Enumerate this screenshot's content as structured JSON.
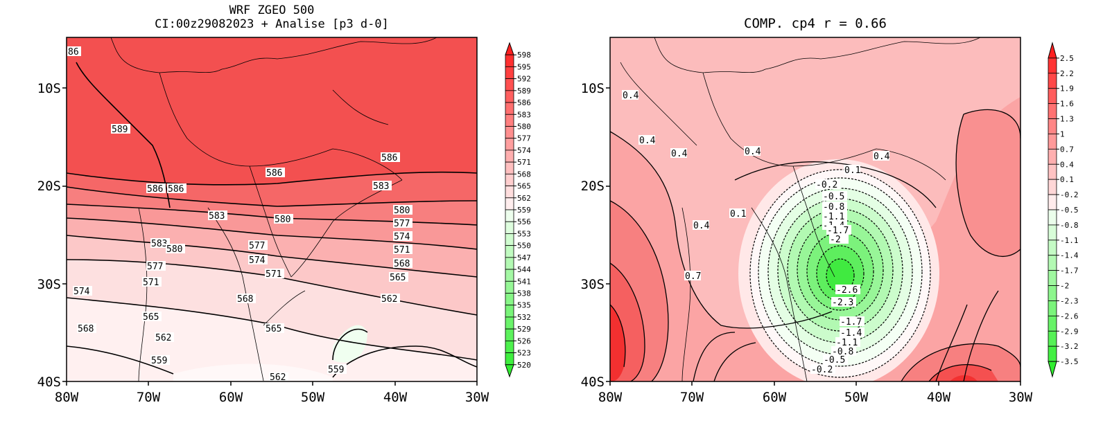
{
  "left_map": {
    "title_line1": "WRF ZGEO 500",
    "title_line2": "CI:00z29082023 + Analise  [p3 d-0]",
    "lat_labels": [
      "10S",
      "20S",
      "30S",
      "40S"
    ],
    "lon_labels": [
      "80W",
      "70W",
      "60W",
      "50W",
      "40W",
      "30W"
    ],
    "colorbar": [
      "598",
      "595",
      "592",
      "589",
      "586",
      "583",
      "580",
      "577",
      "574",
      "571",
      "568",
      "565",
      "562",
      "559",
      "556",
      "553",
      "550",
      "547",
      "544",
      "541",
      "538",
      "535",
      "532",
      "529",
      "526",
      "523",
      "520"
    ],
    "contour_labels": [
      "86",
      "589",
      "586",
      "586",
      "586",
      "586",
      "583",
      "583",
      "580",
      "580",
      "577",
      "577",
      "574",
      "574",
      "571",
      "571",
      "568",
      "568",
      "565",
      "565",
      "562",
      "562",
      "559",
      "559",
      "583",
      "580",
      "577",
      "571",
      "574",
      "565",
      "568",
      "562"
    ]
  },
  "right_map": {
    "title": "COMP. cp4  r =  0.66",
    "lat_labels": [
      "10S",
      "20S",
      "30S",
      "40S"
    ],
    "lon_labels": [
      "80W",
      "70W",
      "60W",
      "50W",
      "40W",
      "30W"
    ],
    "colorbar": [
      "2.5",
      "2.2",
      "1.9",
      "1.6",
      "1.3",
      "1",
      "0.7",
      "0.4",
      "0.1",
      "-0.2",
      "-0.5",
      "-0.8",
      "-1.1",
      "-1.4",
      "-1.7",
      "-2",
      "-2.3",
      "-2.6",
      "-2.9",
      "-3.2",
      "-3.5"
    ],
    "contour_labels": [
      "0.4",
      "0.4",
      "0.4",
      "0.4",
      "0.4",
      "0.1",
      "-0.2",
      "-0.5",
      "-0.8",
      "-1.1",
      "-1.4",
      "-1.7",
      "-2",
      "0.4",
      "0.1",
      "0.7",
      "-2.6",
      "-2.3",
      "-1.7",
      "-1.4",
      "-1.1",
      "-0.8",
      "-0.5",
      "-0.2"
    ]
  },
  "colors": {
    "high": "#ff2222",
    "mid": "#ffb0b0",
    "low_green": "#33ee33"
  }
}
